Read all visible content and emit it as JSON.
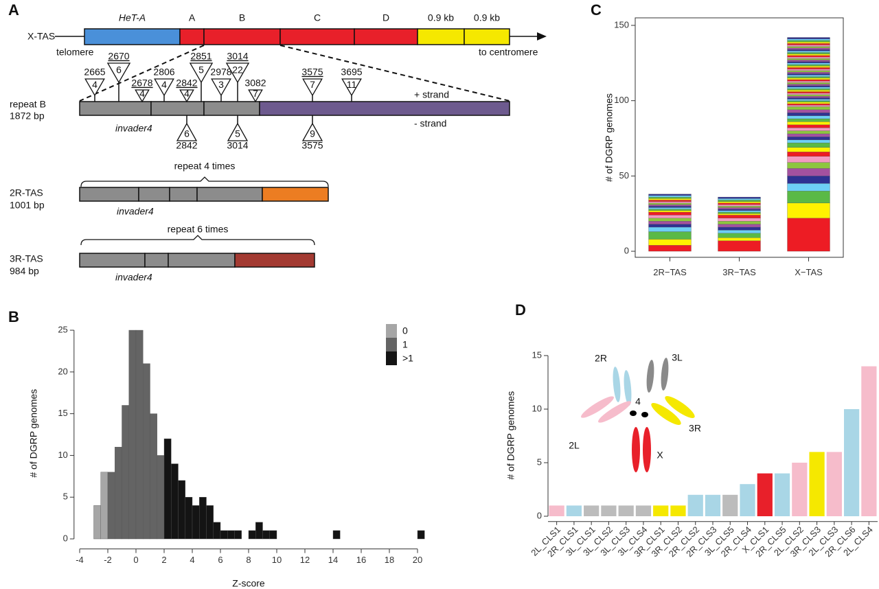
{
  "figure": {
    "panel_labels": [
      "A",
      "B",
      "C",
      "D"
    ]
  },
  "diagram": {
    "x_tas": {
      "label": "X-TAS",
      "left_label": "telomere",
      "right_label": "to centromere",
      "segments": [
        {
          "label": "HeT-A",
          "color": "#4a90d9"
        },
        {
          "label": "A",
          "color": "#e8202a"
        },
        {
          "label": "B",
          "color": "#e8202a"
        },
        {
          "label": "C",
          "color": "#e8202a"
        },
        {
          "label": "D",
          "color": "#e8202a"
        },
        {
          "label": "0.9 kb",
          "color": "#f5e800"
        },
        {
          "label": "0.9 kb",
          "color": "#f5e800"
        }
      ]
    },
    "repeat_b": {
      "label": "repeat B",
      "length": "1872 bp",
      "invader": "invader4",
      "plus": "+ strand",
      "minus": "- strand",
      "insertions_plus": [
        {
          "position": 2665,
          "count": 4,
          "color": "#000000"
        },
        {
          "position": 2670,
          "count": 6,
          "color": "#e0201b"
        },
        {
          "position": 2678,
          "count": 4,
          "color": "#e0201b"
        },
        {
          "position": 2806,
          "count": 4,
          "color": "#000000"
        },
        {
          "position": 2842,
          "count": 4,
          "color": "#e0201b"
        },
        {
          "position": 2851,
          "count": 5,
          "color": "#e0201b"
        },
        {
          "position": 2978,
          "count": 3,
          "color": "#000000"
        },
        {
          "position": 3014,
          "count": 22,
          "color": "#e0201b"
        },
        {
          "position": 3082,
          "count": 7,
          "color": "#000000"
        },
        {
          "position": 3575,
          "count": 7,
          "color": "#e0201b"
        },
        {
          "position": 3695,
          "count": 11,
          "color": "#000000"
        }
      ],
      "insertions_minus": [
        {
          "position": 2842,
          "count": 6,
          "color": "#e0201b"
        },
        {
          "position": 3014,
          "count": 5,
          "color": "#e0201b"
        },
        {
          "position": 3575,
          "count": 9,
          "color": "#e0201b"
        }
      ]
    },
    "tas_2r": {
      "repeat": "repeat 4 times",
      "label": "2R-TAS",
      "length": "1001 bp",
      "invader": "invader4"
    },
    "tas_3r": {
      "repeat": "repeat 6 times",
      "label": "3R-TAS",
      "length": "984 bp",
      "invader": "invader4"
    },
    "karyotype": {
      "labels": [
        "2R",
        "3L",
        "2L",
        "4",
        "3R",
        "X"
      ]
    }
  },
  "chart_data": [
    {
      "type": "histogram",
      "xlabel": "Z-score",
      "ylabel": "# of DGRP genomes",
      "xlim": [
        -4.4,
        20.4
      ],
      "ylim": [
        -1.2,
        26.5
      ],
      "xticks": [
        -4,
        -2,
        0,
        2,
        4,
        6,
        8,
        10,
        12,
        14,
        16,
        18,
        20
      ],
      "yticks": [
        0,
        5,
        10,
        15,
        20,
        25
      ],
      "legend": "top-right",
      "series": [
        {
          "name": "0",
          "color": "#a6a6a6",
          "bins": [
            -3,
            -2.5,
            -2
          ],
          "counts": [
            4,
            8
          ]
        },
        {
          "name": "1",
          "color": "#646464",
          "bins": [
            -2,
            -1.5,
            -1,
            -0.5,
            0,
            0.5,
            1,
            1.5,
            2
          ],
          "counts": [
            8,
            11,
            16,
            25,
            25,
            21,
            15,
            10
          ]
        },
        {
          "name": ">1",
          "color": "#141414",
          "bins": [
            2,
            2.5,
            3,
            3.5,
            4,
            4.5,
            5,
            5.5,
            6,
            6.5,
            7,
            7.5,
            8,
            8.5,
            9,
            9.5,
            10,
            10.5,
            11,
            11.5,
            12,
            12.5,
            13,
            13.5,
            14,
            14.5,
            15,
            15.5,
            16,
            16.5,
            17,
            17.5,
            18,
            18.5,
            19,
            19.5,
            20,
            20.5
          ],
          "counts": [
            12,
            9,
            7,
            5,
            4,
            5,
            4,
            2,
            1,
            1,
            1,
            0,
            1,
            2,
            1,
            1,
            0,
            0,
            0,
            0,
            0,
            0,
            0,
            0,
            1,
            0,
            0,
            0,
            0,
            0,
            0,
            0,
            0,
            0,
            0,
            0,
            1
          ]
        }
      ]
    },
    {
      "type": "stacked_bar",
      "ylabel": "# of DGRP genomes",
      "ylim": [
        -4,
        155
      ],
      "yticks": [
        0,
        50,
        100,
        150
      ],
      "colors": [
        "#ed1c24",
        "#fff200",
        "#5ab946",
        "#6dcff6",
        "#2e3192",
        "#a3519f",
        "#8dc63f",
        "#f49ac1"
      ],
      "categories": [
        "2R−TAS",
        "3R−TAS",
        "X−TAS"
      ],
      "segments": [
        [
          4,
          4,
          5,
          3,
          2,
          2,
          2,
          2,
          2,
          1,
          1,
          1,
          1,
          1,
          1,
          1,
          1,
          1,
          1,
          1,
          1
        ],
        [
          7,
          2,
          3,
          2,
          2,
          2,
          2,
          2,
          2,
          1,
          1,
          1,
          1,
          1,
          1,
          1,
          1,
          1,
          1,
          1,
          1
        ],
        [
          22,
          10,
          8,
          5,
          5,
          5,
          4,
          4,
          3,
          3,
          3,
          2,
          2,
          2,
          2,
          2,
          2,
          2,
          2,
          2,
          2,
          2,
          2,
          1,
          1,
          1,
          1,
          1,
          1,
          1,
          1,
          1,
          1,
          1,
          1,
          1,
          1,
          1,
          1,
          1,
          1,
          1,
          1,
          1,
          1,
          1,
          1,
          1,
          1,
          1,
          1,
          1,
          1,
          1,
          1,
          1,
          1,
          1,
          1,
          1,
          1,
          1,
          1,
          1,
          1,
          1,
          1,
          1,
          1
        ]
      ]
    },
    {
      "type": "bar",
      "ylabel": "# of DGRP genomes",
      "ylim": [
        -0.5,
        15.6
      ],
      "yticks": [
        0,
        5,
        10,
        15
      ],
      "categories": [
        "2L_CLS1",
        "2R_CLS1",
        "3L_CLS1",
        "3L_CLS2",
        "3L_CLS3",
        "3L_CLS4",
        "3R_CLS1",
        "3R_CLS2",
        "2R_CLS2",
        "2R_CLS3",
        "3L_CLS5",
        "2R_CLS4",
        "X_CLS1",
        "2R_CLS5",
        "2L_CLS2",
        "3R_CLS3",
        "2L_CLS3",
        "2R_CLS6",
        "2L_CLS4"
      ],
      "values": [
        1,
        1,
        1,
        1,
        1,
        1,
        1,
        1,
        2,
        2,
        2,
        3,
        4,
        4,
        5,
        6,
        6,
        10,
        14
      ],
      "colors": [
        "#f6bccb",
        "#a9d6e6",
        "#bcbcbc",
        "#bcbcbc",
        "#bcbcbc",
        "#bcbcbc",
        "#f5e800",
        "#f5e800",
        "#a9d6e6",
        "#a9d6e6",
        "#bcbcbc",
        "#a9d6e6",
        "#e8202a",
        "#a9d6e6",
        "#f6bccb",
        "#f5e800",
        "#f6bccb",
        "#a9d6e6",
        "#f6bccb"
      ]
    }
  ]
}
